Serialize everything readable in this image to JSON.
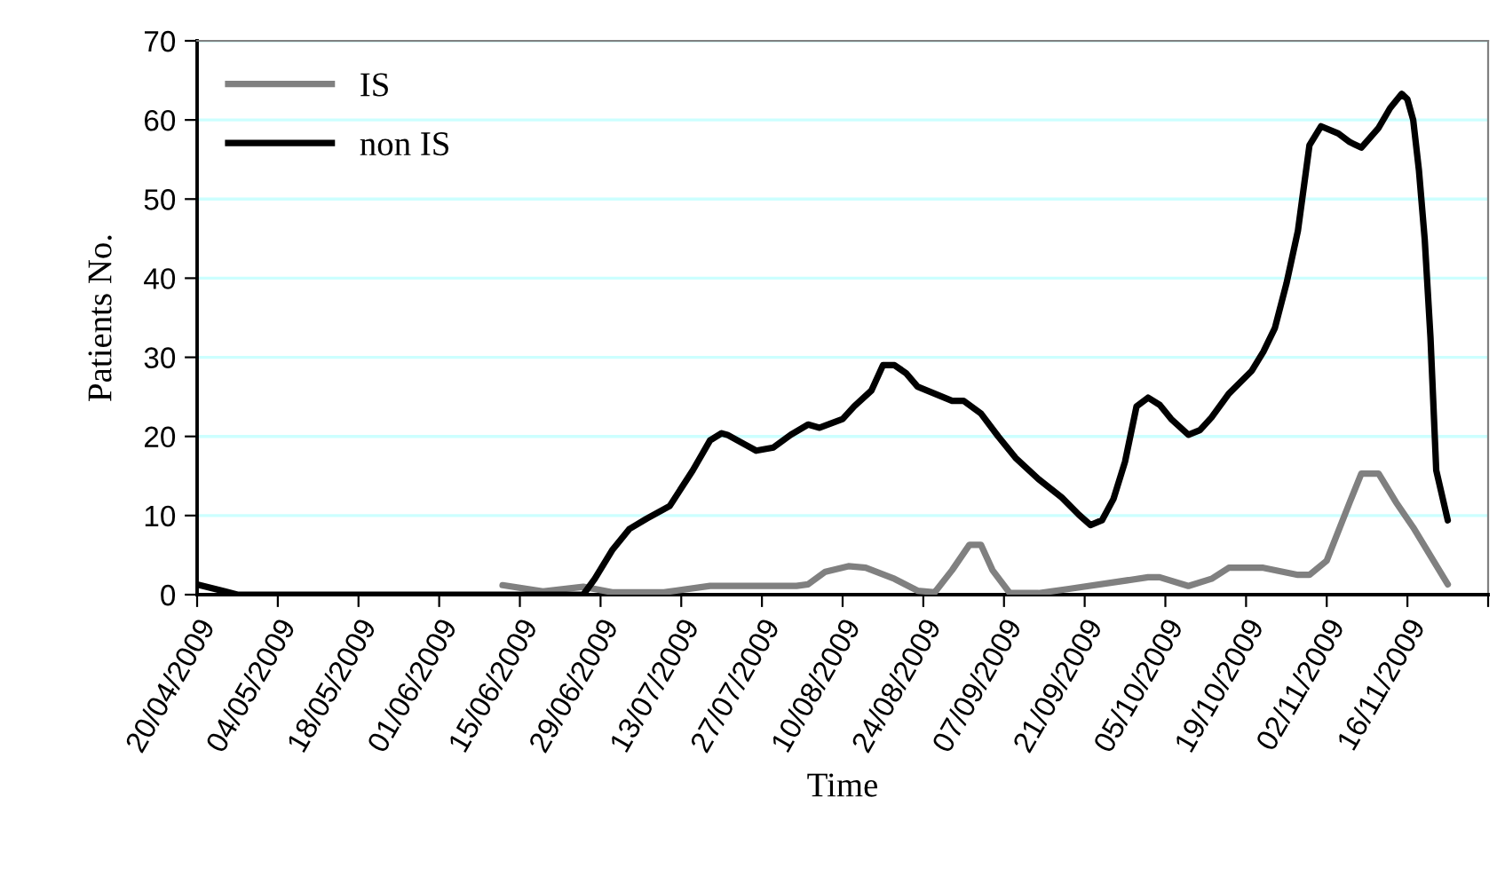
{
  "chart_data": {
    "type": "line",
    "xlabel": "Time",
    "ylabel": "Patients No.",
    "ylim": [
      0,
      70
    ],
    "yticks": [
      0,
      10,
      20,
      30,
      40,
      50,
      60,
      70
    ],
    "xlim": [
      "2009-04-20",
      "2009-11-30"
    ],
    "xticks": [
      {
        "value": "2009-04-20",
        "label": "20/04/2009"
      },
      {
        "value": "2009-05-04",
        "label": "04/05/2009"
      },
      {
        "value": "2009-05-18",
        "label": "18/05/2009"
      },
      {
        "value": "2009-06-01",
        "label": "01/06/2009"
      },
      {
        "value": "2009-06-15",
        "label": "15/06/2009"
      },
      {
        "value": "2009-06-29",
        "label": "29/06/2009"
      },
      {
        "value": "2009-07-13",
        "label": "13/07/2009"
      },
      {
        "value": "2009-07-27",
        "label": "27/07/2009"
      },
      {
        "value": "2009-08-10",
        "label": "10/08/2009"
      },
      {
        "value": "2009-08-24",
        "label": "24/08/2009"
      },
      {
        "value": "2009-09-07",
        "label": "07/09/2009"
      },
      {
        "value": "2009-09-21",
        "label": "21/09/2009"
      },
      {
        "value": "2009-10-05",
        "label": "05/10/2009"
      },
      {
        "value": "2009-10-19",
        "label": "19/10/2009"
      },
      {
        "value": "2009-11-02",
        "label": "02/11/2009"
      },
      {
        "value": "2009-11-16",
        "label": "16/11/2009"
      },
      {
        "value": "2009-11-30",
        "label": null
      }
    ],
    "grid": "y",
    "legend": "top left",
    "marker": "none",
    "line_style": "solid",
    "series": [
      {
        "name": "IS",
        "color": "#808080",
        "x": [
          "2009-06-12",
          "2009-06-19",
          "2009-06-26",
          "2009-07-01",
          "2009-07-10",
          "2009-07-18",
          "2009-08-02",
          "2009-08-04",
          "2009-08-07",
          "2009-08-11",
          "2009-08-14",
          "2009-08-19",
          "2009-08-23",
          "2009-08-26",
          "2009-08-29",
          "2009-09-01",
          "2009-09-03",
          "2009-09-05",
          "2009-09-08",
          "2009-09-13",
          "2009-09-18",
          "2009-10-02",
          "2009-10-04",
          "2009-10-09",
          "2009-10-13",
          "2009-10-16",
          "2009-10-22",
          "2009-10-28",
          "2009-10-30",
          "2009-11-02",
          "2009-11-06",
          "2009-11-08",
          "2009-11-11",
          "2009-11-14",
          "2009-11-17",
          "2009-11-23"
        ],
        "values": [
          1.2,
          0.4,
          1,
          0.3,
          0.3,
          1.1,
          1.1,
          1.3,
          2.9,
          3.6,
          3.4,
          2,
          0.5,
          0.3,
          3.1,
          6.3,
          6.3,
          3.1,
          0.2,
          0.2,
          0.7,
          2.2,
          2.2,
          1.1,
          2,
          3.4,
          3.4,
          2.5,
          2.5,
          4.3,
          11.7,
          15.3,
          15.3,
          11.7,
          8.5,
          1.3
        ]
      },
      {
        "name": "non IS",
        "color": "#000000",
        "x": [
          "2009-04-20",
          "2009-04-27",
          "2009-06-26",
          "2009-06-28",
          "2009-07-01",
          "2009-07-04",
          "2009-07-07",
          "2009-07-11",
          "2009-07-15",
          "2009-07-18",
          "2009-07-20",
          "2009-07-21",
          "2009-07-24",
          "2009-07-26",
          "2009-07-29",
          "2009-08-01",
          "2009-08-04",
          "2009-08-06",
          "2009-08-10",
          "2009-08-12",
          "2009-08-15",
          "2009-08-17",
          "2009-08-19",
          "2009-08-21",
          "2009-08-23",
          "2009-08-26",
          "2009-08-29",
          "2009-08-31",
          "2009-09-03",
          "2009-09-06",
          "2009-09-09",
          "2009-09-13",
          "2009-09-17",
          "2009-09-20",
          "2009-09-22",
          "2009-09-24",
          "2009-09-26",
          "2009-09-28",
          "2009-09-30",
          "2009-10-02",
          "2009-10-04",
          "2009-10-06",
          "2009-10-09",
          "2009-10-11",
          "2009-10-13",
          "2009-10-16",
          "2009-10-20",
          "2009-10-22",
          "2009-10-24",
          "2009-10-26",
          "2009-10-28",
          "2009-10-30",
          "2009-11-01",
          "2009-11-04",
          "2009-11-06",
          "2009-11-08",
          "2009-11-11",
          "2009-11-13",
          "2009-11-15",
          "2009-11-16",
          "2009-11-17",
          "2009-11-18",
          "2009-11-19",
          "2009-11-20",
          "2009-11-21",
          "2009-11-23"
        ],
        "values": [
          1.3,
          0,
          0,
          2,
          5.6,
          8.3,
          9.6,
          11.2,
          15.7,
          19.5,
          20.4,
          20.2,
          19,
          18.2,
          18.6,
          20.2,
          21.5,
          21.1,
          22.2,
          23.8,
          25.8,
          29,
          29,
          28,
          26.3,
          25.4,
          24.5,
          24.5,
          22.9,
          20,
          17.3,
          14.6,
          12.3,
          10.1,
          8.8,
          9.4,
          12.1,
          16.8,
          23.8,
          24.9,
          24,
          22.2,
          20.2,
          20.8,
          22.4,
          25.4,
          28.3,
          30.7,
          33.7,
          39.3,
          46,
          56.8,
          59.2,
          58.3,
          57.2,
          56.5,
          59,
          61.5,
          63.3,
          62.6,
          60,
          53.6,
          44.9,
          32.5,
          15.7,
          9.4
        ]
      }
    ]
  }
}
